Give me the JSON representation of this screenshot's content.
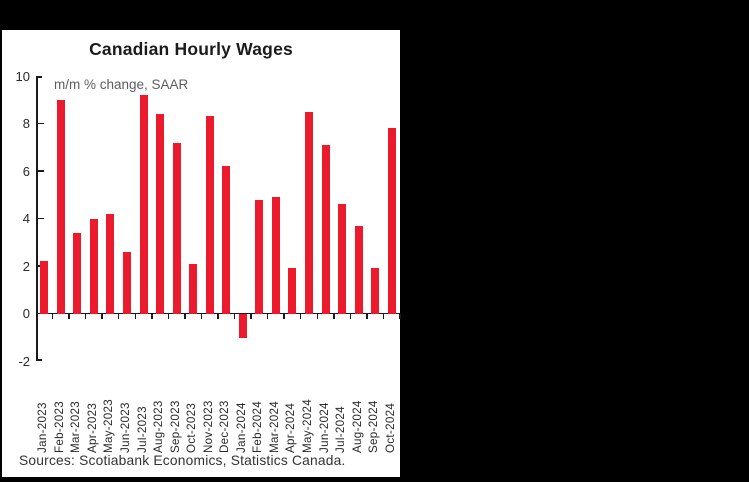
{
  "window": {
    "background": "#000000"
  },
  "chart": {
    "title": "Canadian Hourly Wages",
    "subtitle": "m/m % change, SAAR",
    "source_note": "Sources: Scotiabank Economics, Statistics Canada.",
    "colors": {
      "panel_bg": "#ffffff",
      "bar": "#eb1b2d",
      "title": "#1b1b1b",
      "subtitle": "#5d5e61",
      "axis": "#1a1a1a",
      "tick_label": "#2a2a2a",
      "source": "#333333"
    }
  },
  "chart_data": {
    "type": "bar",
    "title": "Canadian Hourly Wages",
    "subtitle": "m/m % change, SAAR",
    "source": "Sources: Scotiabank Economics, Statistics Canada.",
    "categories": [
      "Jan-2023",
      "Feb-2023",
      "Mar-2023",
      "Apr-2023",
      "May-2023",
      "Jun-2023",
      "Jul-2023",
      "Aug-2023",
      "Sep-2023",
      "Oct-2023",
      "Nov-2023",
      "Dec-2023",
      "Jan-2024",
      "Feb-2024",
      "Mar-2024",
      "Apr-2024",
      "May-2024",
      "Jun-2024",
      "Jul-2024",
      "Aug-2024",
      "Sep-2024",
      "Oct-2024"
    ],
    "values": [
      2.2,
      9.0,
      3.4,
      4.0,
      4.2,
      2.6,
      9.2,
      8.4,
      7.2,
      2.1,
      8.3,
      6.2,
      -1.0,
      4.8,
      4.9,
      1.9,
      8.5,
      7.1,
      4.6,
      3.7,
      1.9,
      7.8
    ],
    "ylim": [
      -2,
      10
    ],
    "yticks": [
      10,
      8,
      6,
      4,
      2,
      0,
      -2
    ],
    "grid": false,
    "legend": null,
    "bar_color": "#eb1b2d"
  }
}
